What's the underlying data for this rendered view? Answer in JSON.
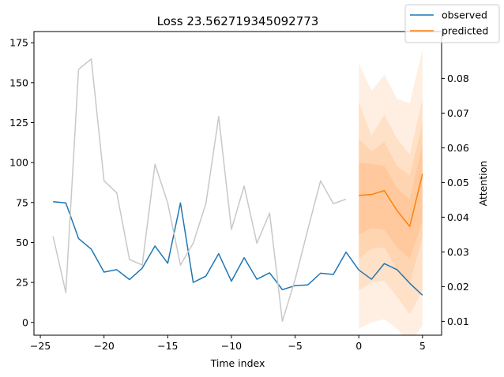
{
  "chart_data": {
    "type": "line",
    "title": "Loss 23.562719345092773",
    "xlabel": "Time index",
    "ylabel": "",
    "y2label": "Attention",
    "xlim": [
      -25.5,
      6.5
    ],
    "ylim": [
      -8,
      182
    ],
    "y2lim": [
      0.006,
      0.0935
    ],
    "xticks": [
      -25,
      -20,
      -15,
      -10,
      -5,
      0,
      5
    ],
    "yticks": [
      0,
      25,
      50,
      75,
      100,
      125,
      150,
      175
    ],
    "y2ticks": [
      0.01,
      0.02,
      0.03,
      0.04,
      0.05,
      0.06,
      0.07,
      0.08
    ],
    "legend_position": "top-right",
    "grid": false,
    "colors": {
      "observed": "#1f77b4",
      "predicted": "#ff7f0e",
      "attention": "#c8c8c8",
      "band": "#ff7f0e"
    },
    "series": [
      {
        "name": "observed",
        "x": [
          -24,
          -23,
          -22,
          -21,
          -20,
          -19,
          -18,
          -17,
          -16,
          -15,
          -14,
          -13,
          -12,
          -11,
          -10,
          -9,
          -8,
          -7,
          -6,
          -5,
          -4,
          -3,
          -2,
          -1,
          0,
          1,
          2,
          3,
          4,
          5
        ],
        "values": [
          75.5,
          74.8,
          52.5,
          45.8,
          31.5,
          33,
          26.8,
          34,
          47.8,
          37,
          74.8,
          25,
          29,
          43,
          25.8,
          40.5,
          27,
          31,
          20.5,
          23,
          23.5,
          30.8,
          30,
          44,
          32.8,
          27,
          36.8,
          33,
          24.5,
          17
        ]
      },
      {
        "name": "predicted",
        "x": [
          0,
          1,
          2,
          3,
          4,
          5
        ],
        "values": [
          79.5,
          80,
          82.5,
          70,
          60,
          93
        ]
      },
      {
        "name": "attention",
        "axis": "right",
        "x": [
          -24,
          -23,
          -22,
          -21,
          -20,
          -19,
          -18,
          -17,
          -16,
          -15,
          -14,
          -13,
          -12,
          -11,
          -10,
          -9,
          -8,
          -7,
          -6,
          -5,
          -4,
          -3,
          -2,
          -1
        ],
        "values": [
          0.0345,
          0.0183,
          0.0826,
          0.0856,
          0.0505,
          0.047,
          0.0278,
          0.0262,
          0.0553,
          0.0441,
          0.0262,
          0.0325,
          0.044,
          0.069,
          0.0365,
          0.049,
          0.0325,
          0.0412,
          0.01,
          0.022,
          0.0365,
          0.0505,
          0.0439,
          0.0452
        ]
      }
    ],
    "prediction_bands": [
      {
        "x": [
          0,
          1,
          2,
          3,
          4,
          5
        ],
        "low": [
          -4,
          0,
          2,
          -4,
          -13,
          -2
        ],
        "high": [
          162,
          145,
          155,
          140,
          137,
          171
        ]
      },
      {
        "x": [
          0,
          1,
          2,
          3,
          4,
          5
        ],
        "low": [
          20,
          25,
          26,
          16,
          5,
          20
        ],
        "high": [
          138,
          117,
          130,
          115,
          105,
          140
        ]
      },
      {
        "x": [
          0,
          1,
          2,
          3,
          4,
          5
        ],
        "low": [
          40,
          46,
          47,
          33,
          25,
          53
        ],
        "high": [
          115,
          107,
          113,
          98,
          92,
          124
        ]
      },
      {
        "x": [
          0,
          1,
          2,
          3,
          4,
          5
        ],
        "low": [
          55,
          59,
          58,
          47,
          40,
          63
        ],
        "high": [
          100,
          99,
          98,
          84,
          77,
          111
        ]
      }
    ]
  },
  "legend": {
    "observed_label": "observed",
    "predicted_label": "predicted"
  }
}
